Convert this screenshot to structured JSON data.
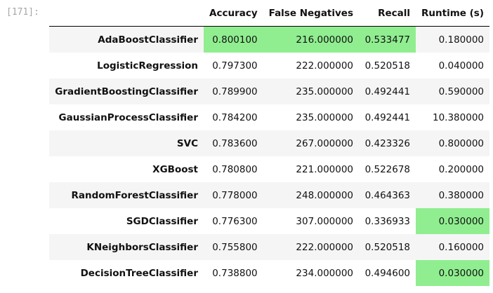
{
  "cell": {
    "prompt": "[171]:"
  },
  "table": {
    "columns": [
      "Accuracy",
      "False Negatives",
      "Recall",
      "Runtime (s)"
    ],
    "highlight_color": "#90ee90",
    "rows": [
      {
        "name": "AdaBoostClassifier",
        "values": [
          "0.800100",
          "216.000000",
          "0.533477",
          "0.180000"
        ],
        "highlight": [
          true,
          true,
          true,
          false
        ]
      },
      {
        "name": "LogisticRegression",
        "values": [
          "0.797300",
          "222.000000",
          "0.520518",
          "0.040000"
        ],
        "highlight": [
          false,
          false,
          false,
          false
        ]
      },
      {
        "name": "GradientBoostingClassifier",
        "values": [
          "0.789900",
          "235.000000",
          "0.492441",
          "0.590000"
        ],
        "highlight": [
          false,
          false,
          false,
          false
        ]
      },
      {
        "name": "GaussianProcessClassifier",
        "values": [
          "0.784200",
          "235.000000",
          "0.492441",
          "10.380000"
        ],
        "highlight": [
          false,
          false,
          false,
          false
        ]
      },
      {
        "name": "SVC",
        "values": [
          "0.783600",
          "267.000000",
          "0.423326",
          "0.800000"
        ],
        "highlight": [
          false,
          false,
          false,
          false
        ]
      },
      {
        "name": "XGBoost",
        "values": [
          "0.780800",
          "221.000000",
          "0.522678",
          "0.200000"
        ],
        "highlight": [
          false,
          false,
          false,
          false
        ]
      },
      {
        "name": "RandomForestClassifier",
        "values": [
          "0.778000",
          "248.000000",
          "0.464363",
          "0.380000"
        ],
        "highlight": [
          false,
          false,
          false,
          false
        ]
      },
      {
        "name": "SGDClassifier",
        "values": [
          "0.776300",
          "307.000000",
          "0.336933",
          "0.030000"
        ],
        "highlight": [
          false,
          false,
          false,
          true
        ]
      },
      {
        "name": "KNeighborsClassifier",
        "values": [
          "0.755800",
          "222.000000",
          "0.520518",
          "0.160000"
        ],
        "highlight": [
          false,
          false,
          false,
          false
        ]
      },
      {
        "name": "DecisionTreeClassifier",
        "values": [
          "0.738800",
          "234.000000",
          "0.494600",
          "0.030000"
        ],
        "highlight": [
          false,
          false,
          false,
          true
        ]
      }
    ]
  }
}
